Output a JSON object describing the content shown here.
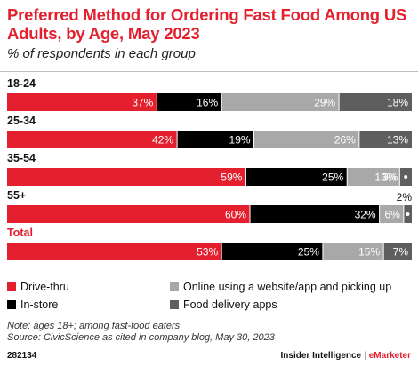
{
  "title": "Preferred Method for Ordering Fast Food Among US Adults, by Age, May 2023",
  "subtitle": "% of respondents in each group",
  "note": "Note: ages 18+; among fast-food eaters",
  "source": "Source: CivicScience as cited in company blog, May 30, 2023",
  "footer": {
    "chart_id": "282134",
    "brand_primary": "Insider Intelligence",
    "brand_separator": "|",
    "brand_secondary": "eMarketer"
  },
  "colors": {
    "drive_thru": "#e4202e",
    "in_store": "#000000",
    "online_pickup": "#a8a8a8",
    "delivery": "#5e5e5e",
    "accent": "#e4202e"
  },
  "legend": [
    {
      "label": "Drive-thru",
      "color": "#e4202e"
    },
    {
      "label": "In-store",
      "color": "#000000"
    },
    {
      "label": "Online using a website/app and picking up",
      "color": "#a8a8a8"
    },
    {
      "label": "Food delivery apps",
      "color": "#5e5e5e"
    }
  ],
  "chart_data": {
    "type": "bar",
    "orientation": "horizontal",
    "stacked": true,
    "categories": [
      "18-24",
      "25-34",
      "35-54",
      "55+",
      "Total"
    ],
    "series": [
      {
        "name": "Drive-thru",
        "values": [
          37,
          42,
          59,
          60,
          53
        ]
      },
      {
        "name": "In-store",
        "values": [
          16,
          19,
          25,
          32,
          25
        ]
      },
      {
        "name": "Online using a website/app and picking up",
        "values": [
          29,
          26,
          13,
          6,
          15
        ]
      },
      {
        "name": "Food delivery apps",
        "values": [
          18,
          13,
          3,
          2,
          7
        ]
      }
    ],
    "ylim": [
      0,
      100
    ],
    "value_suffix": "%",
    "highlight_category": "Total"
  }
}
